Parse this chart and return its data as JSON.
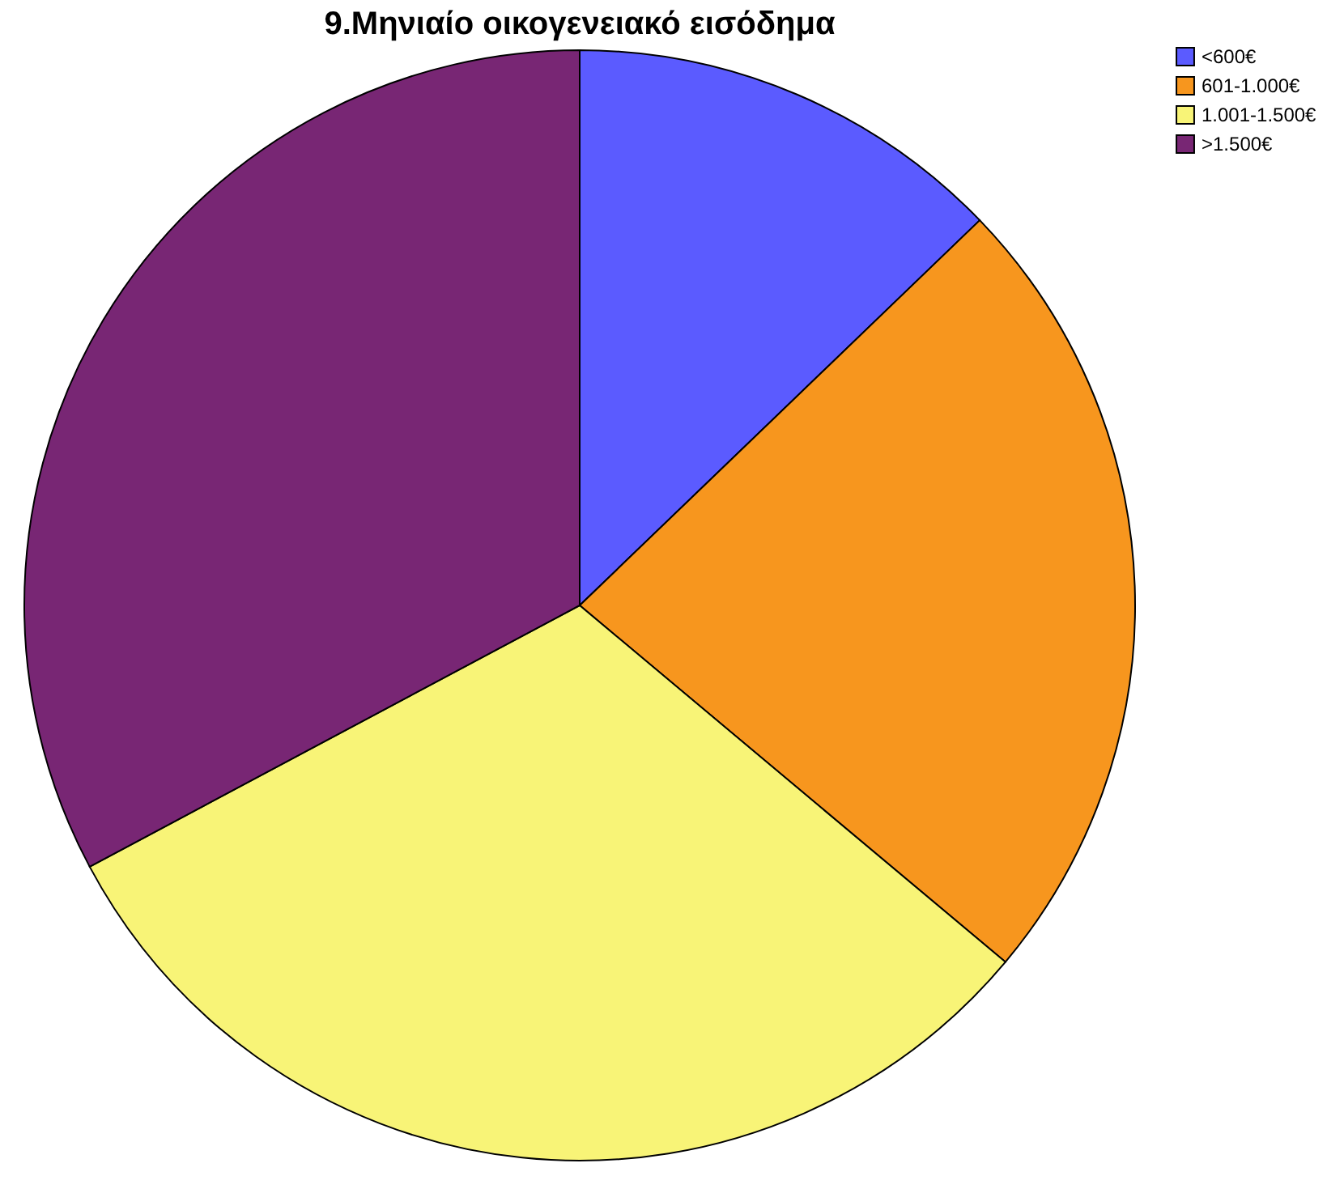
{
  "chart_data": {
    "type": "pie",
    "title": "9.Μηνιαίο οικογενειακό εισόδημα",
    "categories": [
      "<600€",
      "601-1.000€",
      "1.001-1.500€",
      ">1.500€"
    ],
    "values": [
      12.8,
      23.3,
      31.1,
      32.8
    ],
    "colors": [
      "#5b5bff",
      "#f7961e",
      "#f8f477",
      "#782674"
    ],
    "legend": "top right"
  }
}
